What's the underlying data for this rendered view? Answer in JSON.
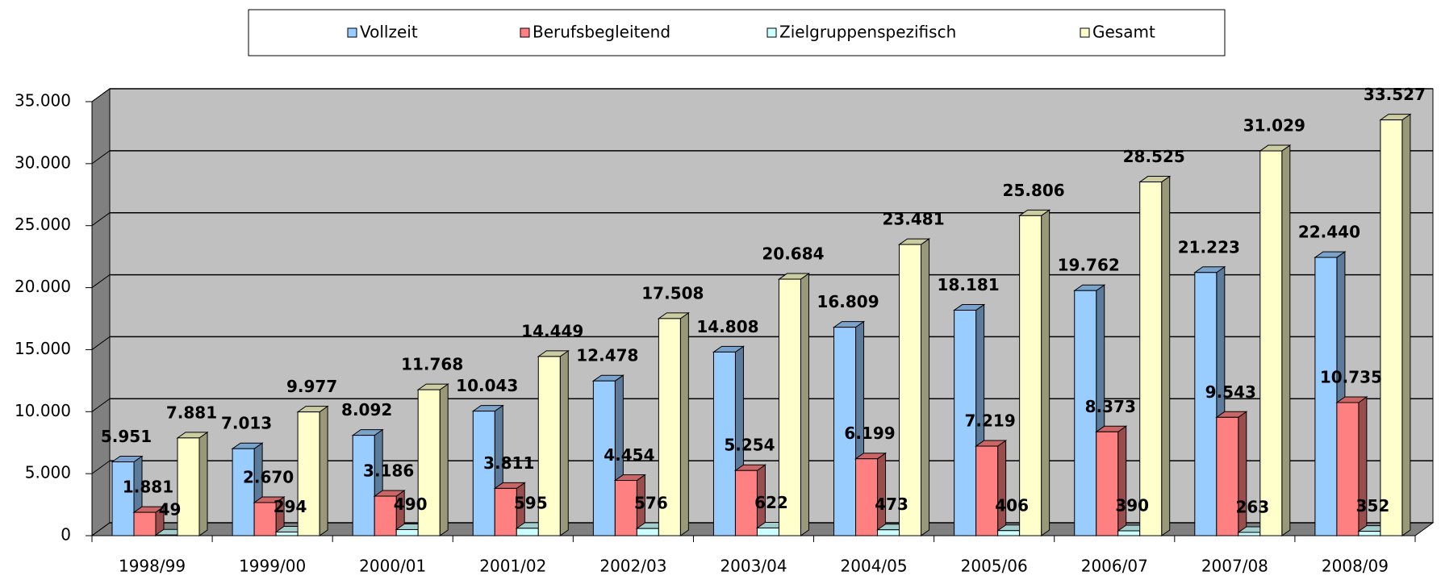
{
  "chart_data": {
    "type": "bar3d",
    "categories": [
      "1998/99",
      "1999/00",
      "2000/01",
      "2001/02",
      "2002/03",
      "2003/04",
      "2004/05",
      "2005/06",
      "2006/07",
      "2007/08",
      "2008/09"
    ],
    "series": [
      {
        "name": "Vollzeit",
        "color": "#99ccff",
        "values": [
          5951,
          7013,
          8092,
          10043,
          12478,
          14808,
          16809,
          18181,
          19762,
          21223,
          22440
        ],
        "value_labels": [
          "5.951",
          "7.013",
          "8.092",
          "10.043",
          "12.478",
          "14.808",
          "16.809",
          "18.181",
          "19.762",
          "21.223",
          "22.440"
        ]
      },
      {
        "name": "Berufsbegleitend",
        "color": "#ff8080",
        "values": [
          1881,
          2670,
          3186,
          3811,
          4454,
          5254,
          6199,
          7219,
          8373,
          9543,
          10735
        ],
        "value_labels": [
          "1.881",
          "2.670",
          "3.186",
          "3.811",
          "4.454",
          "5.254",
          "6.199",
          "7.219",
          "8.373",
          "9.543",
          "10.735"
        ]
      },
      {
        "name": "Zielgruppenspezifisch",
        "color": "#ccffff",
        "values": [
          49,
          294,
          490,
          595,
          576,
          622,
          473,
          406,
          390,
          263,
          352
        ]
      },
      {
        "name": "Gesamt",
        "color": "#ffffcc",
        "values": [
          7881,
          9977,
          11768,
          14449,
          17508,
          20684,
          23481,
          25806,
          28525,
          31029,
          33527
        ],
        "value_labels": [
          "7.881",
          "9.977",
          "11.768",
          "14.449",
          "17.508",
          "20.684",
          "23.481",
          "25.806",
          "28.525",
          "31.029",
          "33.527"
        ]
      }
    ],
    "ylim": [
      0,
      35000
    ],
    "yticks": [
      0,
      {
        "value": 5000,
        "label": "5.000"
      },
      {
        "value": 10000,
        "label": "10.000"
      },
      {
        "value": 15000,
        "label": "15.000"
      },
      {
        "value": 20000,
        "label": "20.000"
      },
      {
        "value": 25000,
        "label": "25.000"
      },
      {
        "value": 30000,
        "label": "30.000"
      },
      {
        "value": 35000,
        "label": "35.000"
      }
    ],
    "grid": true,
    "legend": "top"
  }
}
